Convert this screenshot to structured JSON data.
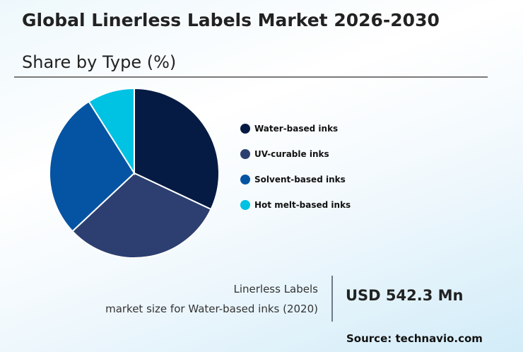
{
  "header": {
    "title": "Global Linerless Labels Market 2026-2030",
    "subtitle": "Share by Type (%)"
  },
  "legend": [
    {
      "label": "Water-based inks",
      "color": "#061b43"
    },
    {
      "label": "UV-curable inks",
      "color": "#2c3f70"
    },
    {
      "label": "Solvent-based inks",
      "color": "#0454a3"
    },
    {
      "label": "Hot melt-based inks",
      "color": "#00c2e2"
    }
  ],
  "stat": {
    "label_line1": "Linerless Labels",
    "label_line2": "market size for Water-based inks (2020)",
    "value": "USD 542.3 Mn"
  },
  "source": "Source: technavio.com",
  "chart_data": {
    "type": "pie",
    "title": "Global Linerless Labels Market 2026-2030",
    "subtitle": "Share by Type (%)",
    "categories": [
      "Water-based inks",
      "UV-curable inks",
      "Solvent-based inks",
      "Hot melt-based inks"
    ],
    "values": [
      32,
      31,
      28,
      9
    ],
    "colors": [
      "#061b43",
      "#2c3f70",
      "#0454a3",
      "#00c2e2"
    ],
    "start_angle": "12 o'clock, clockwise",
    "legend_position": "right",
    "annotation": "Linerless Labels market size for Water-based inks (2020): USD 542.3 Mn"
  }
}
